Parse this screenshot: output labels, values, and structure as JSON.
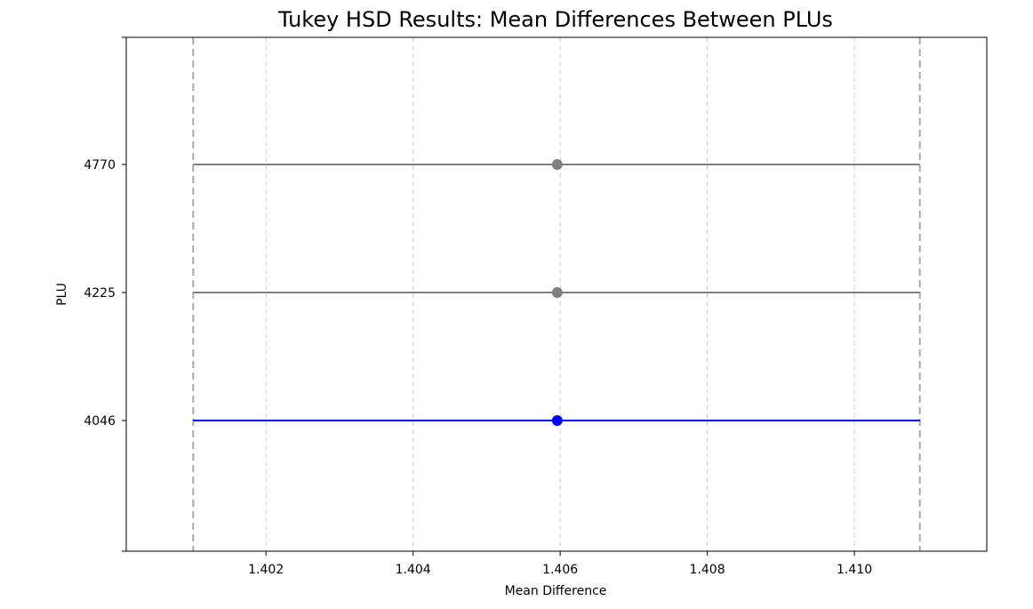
{
  "chart_data": {
    "type": "errorbar",
    "title": "Tukey HSD Results: Mean Differences Between PLUs",
    "xlabel": "Mean Difference",
    "ylabel": "PLU",
    "xlim": [
      1.4001,
      1.4118
    ],
    "xticks": [
      "1.402",
      "1.404",
      "1.406",
      "1.408",
      "1.410"
    ],
    "xtick_values": [
      1.402,
      1.404,
      1.406,
      1.408,
      1.41
    ],
    "grid": "x-dashed",
    "reference_lines": [
      1.40101,
      1.41089
    ],
    "categories": [
      "4046",
      "4225",
      "4770"
    ],
    "points": [
      {
        "plu": "4046",
        "mean_diff": 1.40596,
        "lower": 1.40101,
        "upper": 1.41089,
        "color": "#0000ff"
      },
      {
        "plu": "4225",
        "mean_diff": 1.40596,
        "lower": 1.40101,
        "upper": 1.41089,
        "color": "#808080"
      },
      {
        "plu": "4770",
        "mean_diff": 1.40596,
        "lower": 1.40101,
        "upper": 1.41089,
        "color": "#808080"
      }
    ]
  }
}
